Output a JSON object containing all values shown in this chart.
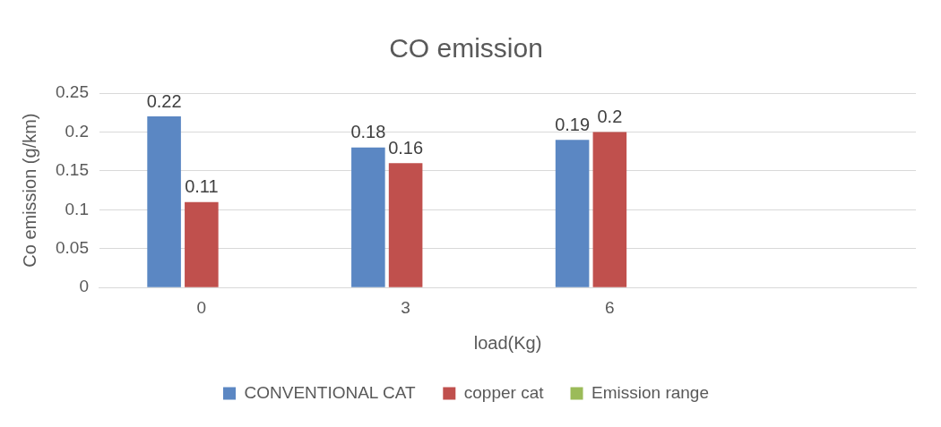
{
  "chart_data": {
    "type": "bar",
    "title": "CO emission",
    "xlabel": "load(Kg)",
    "ylabel": "Co emission (g/km)",
    "categories": [
      "0",
      "3",
      "6",
      null
    ],
    "series": [
      {
        "name": "CONVENTIONAL CAT",
        "color": "#5b87c3",
        "values": [
          0.22,
          0.18,
          0.19,
          null
        ]
      },
      {
        "name": "copper cat",
        "color": "#c0504d",
        "values": [
          0.11,
          0.16,
          0.2,
          null
        ]
      },
      {
        "name": "Emission range",
        "color": "#9bbb59",
        "values": [
          null,
          null,
          null,
          null
        ]
      }
    ],
    "ylim": [
      0,
      0.25
    ],
    "yticks": [
      0,
      0.05,
      0.1,
      0.15,
      0.2,
      0.25
    ],
    "grid": "y",
    "legend": "bottom",
    "data_labels": true
  }
}
